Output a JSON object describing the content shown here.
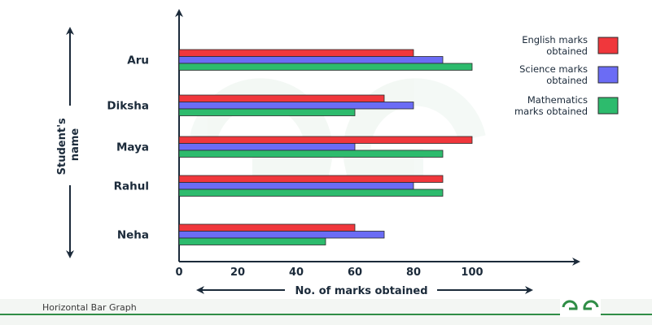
{
  "chart_data": {
    "type": "bar",
    "orientation": "horizontal",
    "categories": [
      "Aru",
      "Diksha",
      "Maya",
      "Rahul",
      "Neha"
    ],
    "series": [
      {
        "name": "English marks obtained",
        "color": "#f0373c",
        "values": [
          80,
          70,
          100,
          90,
          60
        ]
      },
      {
        "name": "Science marks obtained",
        "color": "#6b6cf5",
        "values": [
          90,
          80,
          60,
          80,
          70
        ]
      },
      {
        "name": "Mathematics marks obtained",
        "color": "#2dbb6d",
        "values": [
          100,
          60,
          90,
          90,
          50
        ]
      }
    ],
    "xlabel": "No. of marks obtained",
    "ylabel": "Student's name",
    "xticks": [
      0,
      20,
      40,
      60,
      80,
      100
    ],
    "xlim": [
      0,
      120
    ],
    "legend_position": "top-right",
    "grid": false
  },
  "footer": {
    "caption": "Horizontal Bar Graph",
    "accent_color": "#2f8d46"
  },
  "logo_icon": "geeksforgeeks-logo-icon"
}
